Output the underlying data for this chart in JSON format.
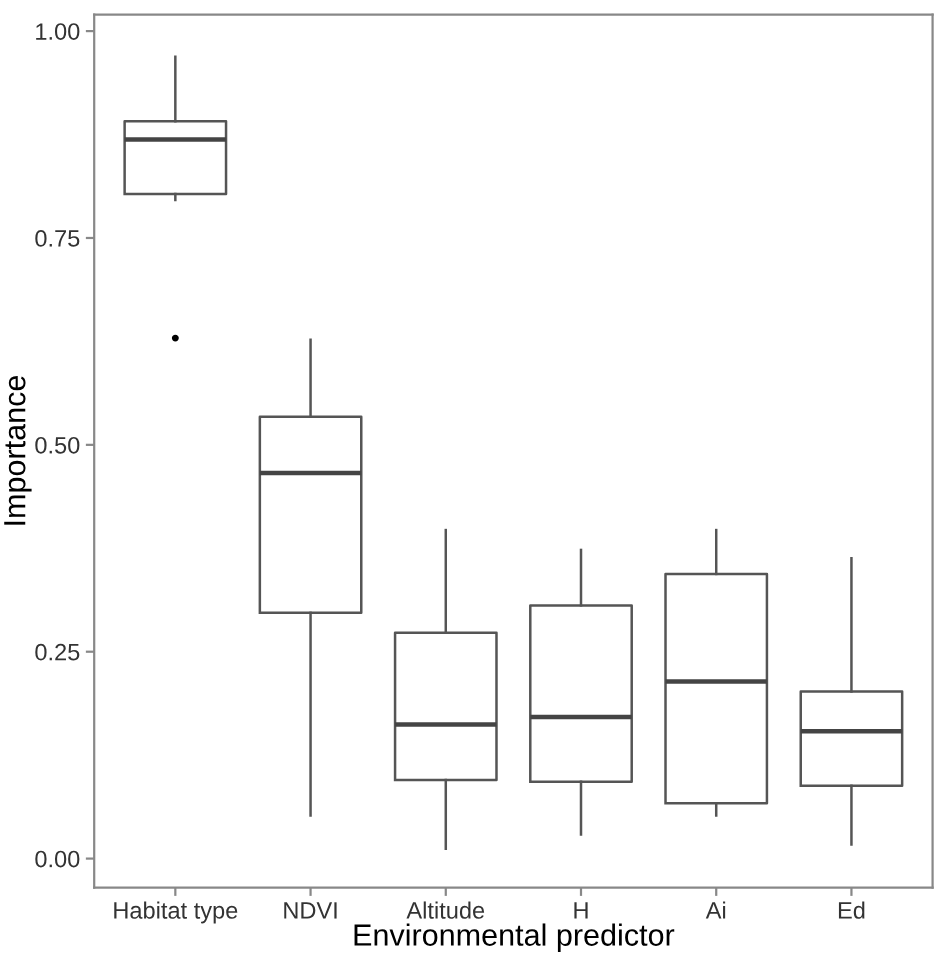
{
  "chart_data": {
    "type": "box",
    "xlabel": "Environmental predictor",
    "ylabel": "Importance",
    "categories": [
      "Habitat type",
      "NDVI",
      "Altitude",
      "H",
      "Ai",
      "Ed"
    ],
    "boxes": [
      {
        "low": 0.796,
        "q1": 0.803,
        "median": 0.869,
        "q3": 0.891,
        "high": 0.969,
        "outliers": [
          0.629
        ]
      },
      {
        "low": 0.052,
        "q1": 0.297,
        "median": 0.466,
        "q3": 0.534,
        "high": 0.627
      },
      {
        "low": 0.012,
        "q1": 0.095,
        "median": 0.162,
        "q3": 0.273,
        "high": 0.397
      },
      {
        "low": 0.029,
        "q1": 0.093,
        "median": 0.171,
        "q3": 0.306,
        "high": 0.373
      },
      {
        "low": 0.052,
        "q1": 0.067,
        "median": 0.214,
        "q3": 0.344,
        "high": 0.397
      },
      {
        "low": 0.017,
        "q1": 0.088,
        "median": 0.154,
        "q3": 0.202,
        "high": 0.363
      }
    ],
    "ylim": [
      -0.035,
      1.02
    ],
    "yticks": [
      {
        "value": 0,
        "label": "0.00"
      },
      {
        "value": 0.25,
        "label": "0.25"
      },
      {
        "value": 0.5,
        "label": "0.50"
      },
      {
        "value": 0.75,
        "label": "0.75"
      },
      {
        "value": 1,
        "label": "1.00"
      }
    ],
    "grid": false,
    "legend": false
  }
}
